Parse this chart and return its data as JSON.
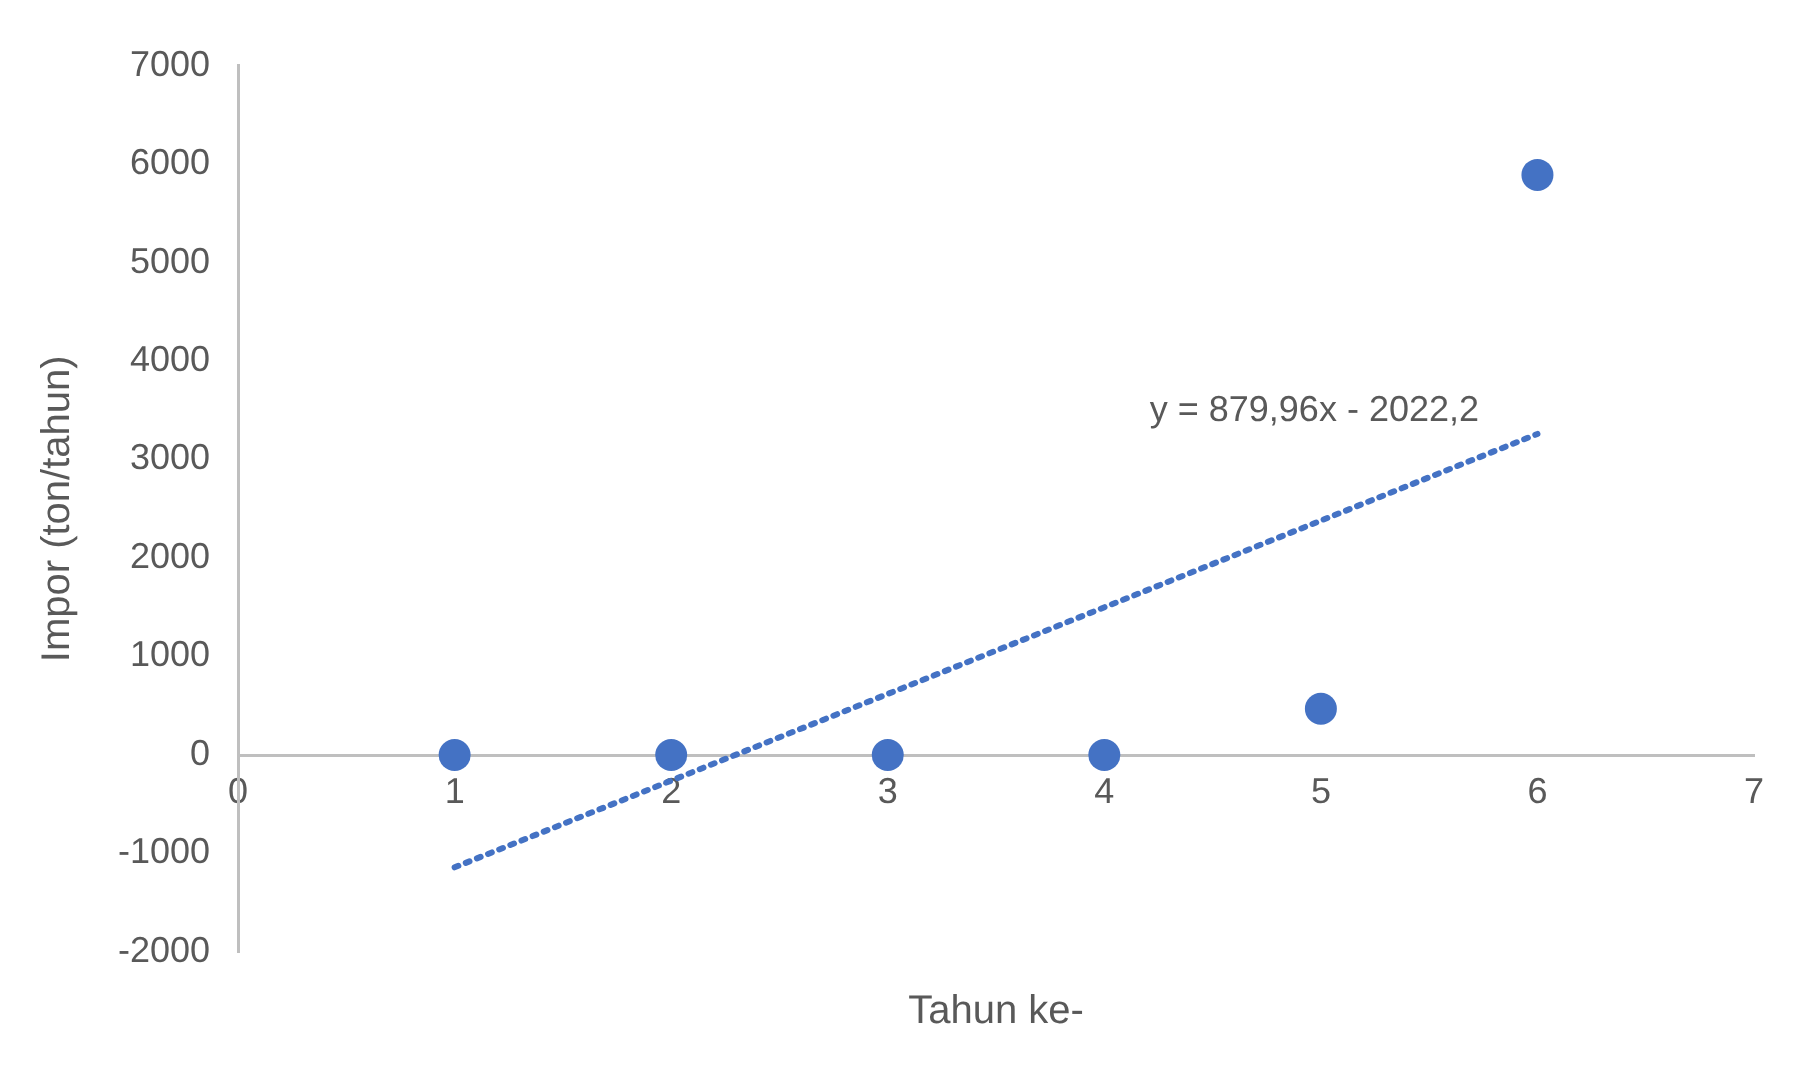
{
  "chart_data": {
    "type": "scatter",
    "xlabel": "Tahun ke-",
    "ylabel": "Impor (ton/tahun)",
    "x": [
      1,
      2,
      3,
      4,
      5,
      6
    ],
    "series": [
      {
        "color": "#4472c4",
        "marker": "circle",
        "values": [
          0,
          0,
          0,
          0,
          470,
          5890
        ]
      },
      {
        "type": "line",
        "color": "#4472c4",
        "x": [
          1,
          6
        ],
        "values": [
          -1140,
          3260
        ],
        "line_style": "dotted",
        "marker": "none"
      }
    ],
    "xlim": [
      0,
      7
    ],
    "xticks": [
      0,
      1,
      2,
      3,
      4,
      5,
      6,
      7
    ],
    "ylim": [
      -2000,
      7000
    ],
    "yticks": [
      -2000,
      -1000,
      0,
      1000,
      2000,
      3000,
      4000,
      5000,
      6000,
      7000
    ],
    "grid": false,
    "legend": false,
    "annotations": [
      "y = 879,96x - 2022,2"
    ]
  }
}
